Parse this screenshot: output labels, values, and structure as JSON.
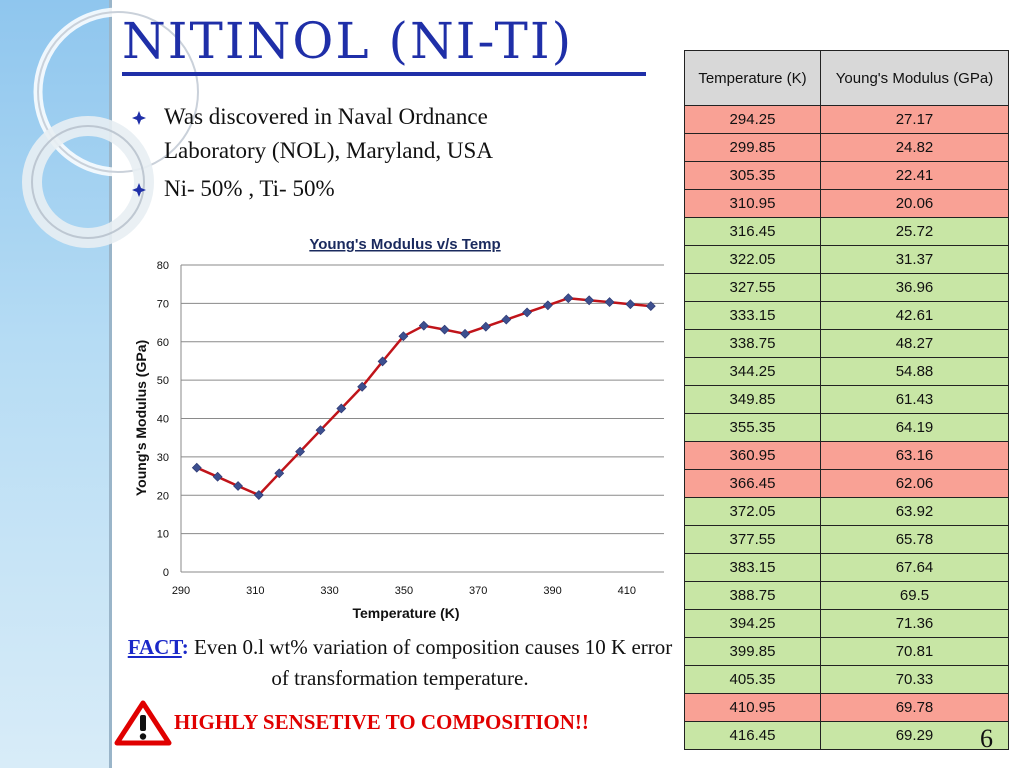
{
  "slide": {
    "title": "NITINOL (Ni-Ti)",
    "page_number": "6"
  },
  "bullets": [
    {
      "line1": "Was discovered in Naval Ordnance",
      "line2": "Laboratory (NOL), Maryland, USA"
    },
    {
      "line1": "Ni- 50% , Ti- 50%",
      "line2": ""
    }
  ],
  "fact": {
    "label": "FACT",
    "colon": ":",
    "text": " Even 0.l wt% variation of composition causes 10 K error of transformation temperature."
  },
  "warning": {
    "text": "HIGHLY SENSETIVE TO COMPOSITION!!"
  },
  "table": {
    "headers": [
      "Temperature (K)",
      "Young's Modulus (GPa)"
    ],
    "rows": [
      {
        "temp": "294.25",
        "modulus": "27.17",
        "highlight": "red"
      },
      {
        "temp": "299.85",
        "modulus": "24.82",
        "highlight": "red"
      },
      {
        "temp": "305.35",
        "modulus": "22.41",
        "highlight": "red"
      },
      {
        "temp": "310.95",
        "modulus": "20.06",
        "highlight": "red"
      },
      {
        "temp": "316.45",
        "modulus": "25.72",
        "highlight": "green"
      },
      {
        "temp": "322.05",
        "modulus": "31.37",
        "highlight": "green"
      },
      {
        "temp": "327.55",
        "modulus": "36.96",
        "highlight": "green"
      },
      {
        "temp": "333.15",
        "modulus": "42.61",
        "highlight": "green"
      },
      {
        "temp": "338.75",
        "modulus": "48.27",
        "highlight": "green"
      },
      {
        "temp": "344.25",
        "modulus": "54.88",
        "highlight": "green"
      },
      {
        "temp": "349.85",
        "modulus": "61.43",
        "highlight": "green"
      },
      {
        "temp": "355.35",
        "modulus": "64.19",
        "highlight": "green"
      },
      {
        "temp": "360.95",
        "modulus": "63.16",
        "highlight": "red"
      },
      {
        "temp": "366.45",
        "modulus": "62.06",
        "highlight": "red"
      },
      {
        "temp": "372.05",
        "modulus": "63.92",
        "highlight": "green"
      },
      {
        "temp": "377.55",
        "modulus": "65.78",
        "highlight": "green"
      },
      {
        "temp": "383.15",
        "modulus": "67.64",
        "highlight": "green"
      },
      {
        "temp": "388.75",
        "modulus": "69.5",
        "highlight": "green"
      },
      {
        "temp": "394.25",
        "modulus": "71.36",
        "highlight": "green"
      },
      {
        "temp": "399.85",
        "modulus": "70.81",
        "highlight": "green"
      },
      {
        "temp": "405.35",
        "modulus": "70.33",
        "highlight": "green"
      },
      {
        "temp": "410.95",
        "modulus": "69.78",
        "highlight": "red"
      },
      {
        "temp": "416.45",
        "modulus": "69.29",
        "highlight": "green"
      }
    ]
  },
  "colors": {
    "title": "#1f2fa8",
    "red_row": "#f9a195",
    "green_row": "#c8e6a5",
    "header_row": "#d8d8d8",
    "line": "#c0141a",
    "marker": "#3d4f8f",
    "warning": "#e00000",
    "fact_label": "#1a28c8"
  },
  "icons": {
    "bullet": "diamond-bullet-icon",
    "warning": "warning-triangle-icon"
  },
  "chart_data": {
    "type": "line",
    "title": "Young's Modulus v/s Temp",
    "xlabel": "Temperature (K)",
    "ylabel": "Young's Modulus (GPa)",
    "xlim": [
      290,
      420
    ],
    "ylim": [
      0,
      80
    ],
    "x_ticks": [
      290,
      310,
      330,
      350,
      370,
      390,
      410
    ],
    "y_ticks": [
      0,
      10,
      20,
      30,
      40,
      50,
      60,
      70,
      80
    ],
    "grid": true,
    "legend": "none",
    "x": [
      294.25,
      299.85,
      305.35,
      310.95,
      316.45,
      322.05,
      327.55,
      333.15,
      338.75,
      344.25,
      349.85,
      355.35,
      360.95,
      366.45,
      372.05,
      377.55,
      383.15,
      388.75,
      394.25,
      399.85,
      405.35,
      410.95,
      416.45
    ],
    "series": [
      {
        "values": [
          27.17,
          24.82,
          22.41,
          20.06,
          25.72,
          31.37,
          36.96,
          42.61,
          48.27,
          54.88,
          61.43,
          64.19,
          63.16,
          62.06,
          63.92,
          65.78,
          67.64,
          69.5,
          71.36,
          70.81,
          70.33,
          69.78,
          69.29
        ]
      }
    ]
  }
}
